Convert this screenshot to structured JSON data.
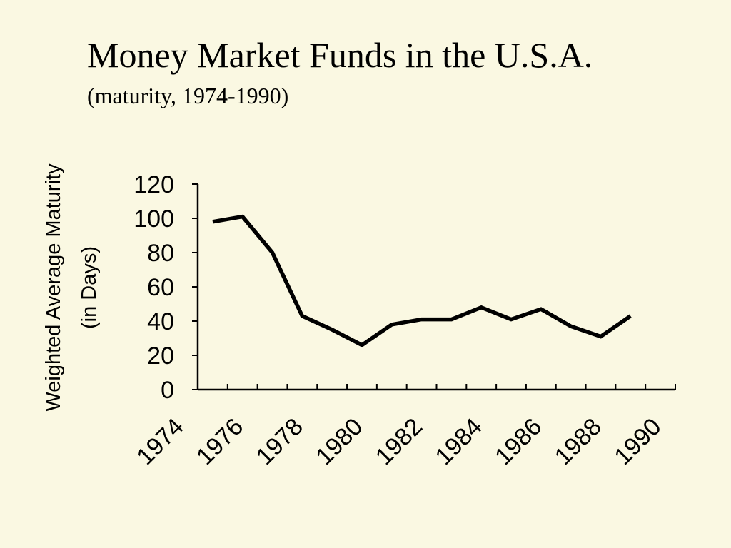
{
  "chart_data": {
    "type": "line",
    "title": "Money Market Funds in the U.S.A.",
    "subtitle": "(maturity, 1974-1990)",
    "ylabel": [
      "Weighted Average Maturity",
      "(in Days)"
    ],
    "xlabel": "",
    "ylim": [
      0,
      120
    ],
    "yticks": [
      0,
      20,
      40,
      60,
      80,
      100,
      120
    ],
    "xlim": [
      1974,
      1990
    ],
    "xtick_labels": [
      "1974",
      "1976",
      "1978",
      "1980",
      "1982",
      "1984",
      "1986",
      "1988",
      "1990"
    ],
    "grid": false,
    "color": "#000000",
    "series": [
      {
        "x": [
          1974.5,
          1975.5,
          1976.5,
          1977.5,
          1978.5,
          1979.5,
          1980.5,
          1981.5,
          1982.5,
          1983.5,
          1984.5,
          1985.5,
          1986.5,
          1987.5,
          1988.5
        ],
        "values": [
          98,
          101,
          80,
          43,
          35,
          26,
          38,
          41,
          41,
          48,
          41,
          47,
          37,
          31,
          43
        ]
      }
    ]
  }
}
